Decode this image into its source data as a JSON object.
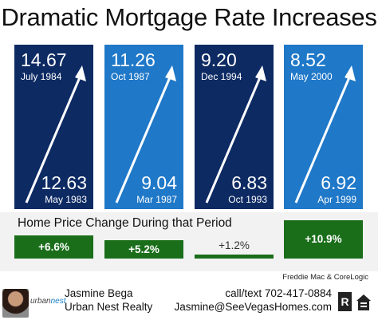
{
  "title": "Dramatic Mortgage Rate Increases",
  "colors": {
    "dark_navy": "#0d2a63",
    "bright_blue": "#1f78c8",
    "green": "#1a6e1a",
    "panel_bg": "#f2f2f2"
  },
  "panels": [
    {
      "high_value": "14.67",
      "high_date": "July 1984",
      "low_value": "12.63",
      "low_date": "May 1983",
      "color": "#0d2a63"
    },
    {
      "high_value": "11.26",
      "high_date": "Oct 1987",
      "low_value": "9.04",
      "low_date": "Mar 1987",
      "color": "#1f78c8"
    },
    {
      "high_value": "9.20",
      "high_date": "Dec 1994",
      "low_value": "6.83",
      "low_date": "Oct 1993",
      "color": "#0d2a63"
    },
    {
      "high_value": "8.52",
      "high_date": "May 2000",
      "low_value": "6.92",
      "low_date": "Apr 1999",
      "color": "#1f78c8"
    }
  ],
  "price_change": {
    "label": "Home Price Change During that Period",
    "bars": [
      {
        "label": "+6.6%",
        "value": 6.6
      },
      {
        "label": "+5.2%",
        "value": 5.2
      },
      {
        "label": "+1.2%",
        "value": 1.2
      },
      {
        "label": "+10.9%",
        "value": 10.9
      }
    ]
  },
  "source": "Freddie Mac & CoreLogic",
  "footer": {
    "logo_text_1": "urban",
    "logo_text_2": "nest",
    "agent_name": "Jasmine Bega",
    "company": "Urban Nest Realty",
    "phone": "call/text 702-417-0884",
    "email": "Jasmine@SeeVegasHomes.com",
    "icons": [
      "realtor-r-icon",
      "equal-housing-icon"
    ]
  }
}
